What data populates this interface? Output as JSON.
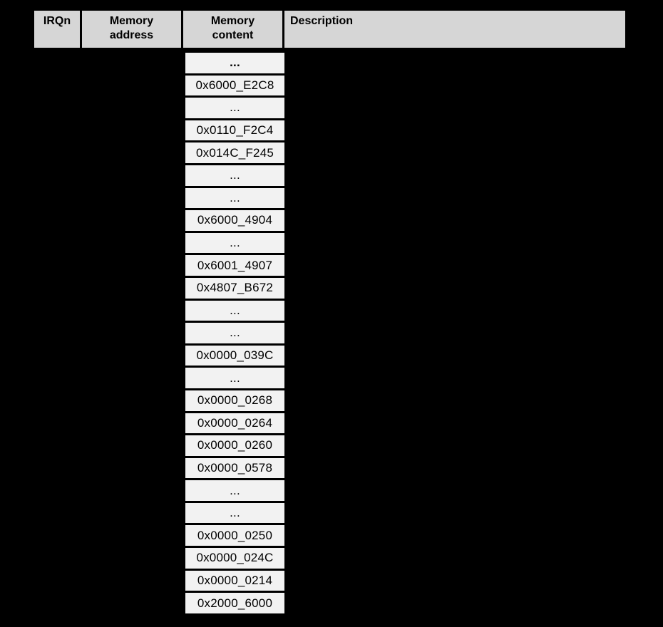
{
  "header": {
    "irqn": "IRQn",
    "memory_address_line1": "Memory",
    "memory_address_line2": "address",
    "memory_content_line1": "Memory",
    "memory_content_line2": "content",
    "description": "Description"
  },
  "memory_content_rows": [
    {
      "text": "...",
      "bold": true
    },
    {
      "text": "0x6000_E2C8",
      "bold": false
    },
    {
      "text": "...",
      "bold": false
    },
    {
      "text": "0x0110_F2C4",
      "bold": false
    },
    {
      "text": "0x014C_F245",
      "bold": false
    },
    {
      "text": "...",
      "bold": false
    },
    {
      "text": "...",
      "bold": false
    },
    {
      "text": "0x6000_4904",
      "bold": false
    },
    {
      "text": "...",
      "bold": false
    },
    {
      "text": "0x6001_4907",
      "bold": false
    },
    {
      "text": "0x4807_B672",
      "bold": false
    },
    {
      "text": "...",
      "bold": false
    },
    {
      "text": "...",
      "bold": false
    },
    {
      "text": "0x0000_039C",
      "bold": false
    },
    {
      "text": "...",
      "bold": false
    },
    {
      "text": "0x0000_0268",
      "bold": false
    },
    {
      "text": "0x0000_0264",
      "bold": false
    },
    {
      "text": "0x0000_0260",
      "bold": false
    },
    {
      "text": "0x0000_0578",
      "bold": false
    },
    {
      "text": "...",
      "bold": false
    },
    {
      "text": "...",
      "bold": false
    },
    {
      "text": "0x0000_0250",
      "bold": false
    },
    {
      "text": "0x0000_024C",
      "bold": false
    },
    {
      "text": "0x0000_0214",
      "bold": false
    },
    {
      "text": "0x2000_6000",
      "bold": false
    }
  ],
  "colors": {
    "background": "#000000",
    "header_fill": "#d6d6d6",
    "cell_fill": "#f2f2f2",
    "border": "#000000",
    "text": "#000000"
  }
}
